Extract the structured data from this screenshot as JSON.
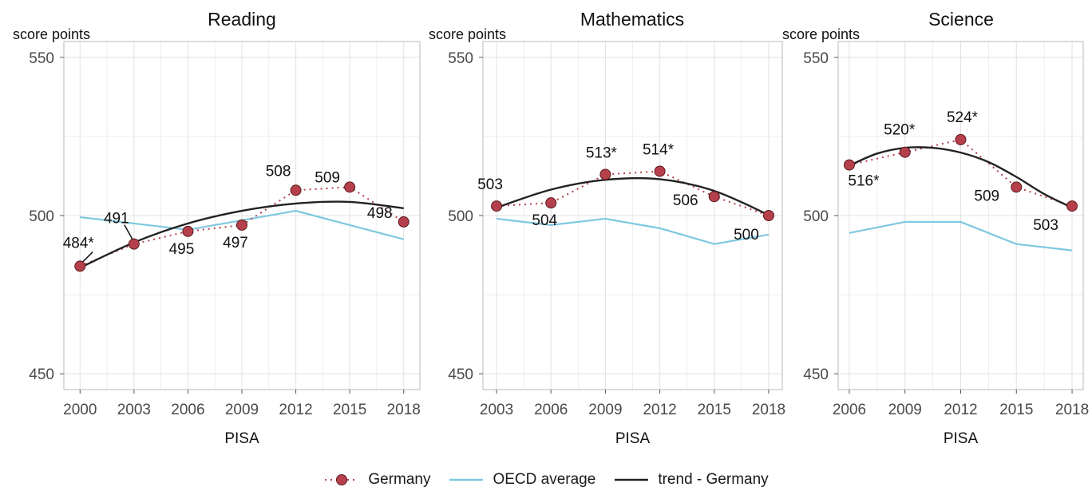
{
  "colors": {
    "germany": "#b5404b",
    "oecd": "#7ec8e0",
    "trend": "#222222",
    "grid": "#e3e3e3",
    "frame": "#b8b8b8"
  },
  "legend": {
    "germany": "Germany",
    "oecd": "OECD average",
    "trend": "trend - Germany"
  },
  "chart_data": [
    {
      "type": "line",
      "title": "Reading",
      "ylabel": "score points",
      "xlabel": "PISA",
      "ylim": [
        450,
        550
      ],
      "yticks": [
        450,
        500,
        550
      ],
      "x": [
        2000,
        2003,
        2006,
        2009,
        2012,
        2015,
        2018
      ],
      "series": [
        {
          "name": "Germany",
          "values": [
            484,
            491,
            495,
            497,
            508,
            509,
            498
          ],
          "labels": [
            "484*",
            "491",
            "495",
            "497",
            "508",
            "509",
            "498"
          ]
        },
        {
          "name": "OECD average",
          "values": [
            499.5,
            497.5,
            495.5,
            498.5,
            501.5,
            497,
            492.5
          ]
        },
        {
          "name": "trend - Germany",
          "x": [
            2000,
            2003,
            2006,
            2009,
            2012,
            2015,
            2018
          ],
          "values": [
            483.5,
            491.5,
            497.5,
            501.5,
            503.8,
            504.3,
            502.3
          ]
        }
      ]
    },
    {
      "type": "line",
      "title": "Mathematics",
      "ylabel": "score points",
      "xlabel": "PISA",
      "ylim": [
        450,
        550
      ],
      "yticks": [
        450,
        500,
        550
      ],
      "x": [
        2003,
        2006,
        2009,
        2012,
        2015,
        2018
      ],
      "series": [
        {
          "name": "Germany",
          "values": [
            503,
            504,
            513,
            514,
            506,
            500
          ],
          "labels": [
            "503",
            "504",
            "513*",
            "514*",
            "506",
            "500"
          ]
        },
        {
          "name": "OECD average",
          "values": [
            499,
            497,
            499,
            496,
            491,
            494
          ]
        },
        {
          "name": "trend - Germany",
          "x": [
            2003,
            2006,
            2009,
            2012,
            2015,
            2018
          ],
          "values": [
            502.5,
            508.2,
            511.3,
            511.5,
            507.8,
            500.2
          ]
        }
      ]
    },
    {
      "type": "line",
      "title": "Science",
      "ylabel": "score points",
      "xlabel": "PISA",
      "ylim": [
        450,
        550
      ],
      "yticks": [
        450,
        500,
        550
      ],
      "x": [
        2006,
        2009,
        2012,
        2015,
        2018
      ],
      "series": [
        {
          "name": "Germany",
          "values": [
            516,
            520,
            524,
            509,
            503
          ],
          "labels": [
            "516*",
            "520*",
            "524*",
            "509",
            "503"
          ]
        },
        {
          "name": "OECD average",
          "values": [
            494.5,
            498,
            498,
            491,
            489
          ]
        },
        {
          "name": "trend - Germany",
          "x": [
            2006,
            2007.5,
            2009,
            2010.5,
            2012,
            2013.5,
            2015,
            2016.5,
            2018
          ],
          "values": [
            515.8,
            519.6,
            521.4,
            521.4,
            519.9,
            516.9,
            512.2,
            506.8,
            502.5
          ]
        }
      ]
    }
  ]
}
